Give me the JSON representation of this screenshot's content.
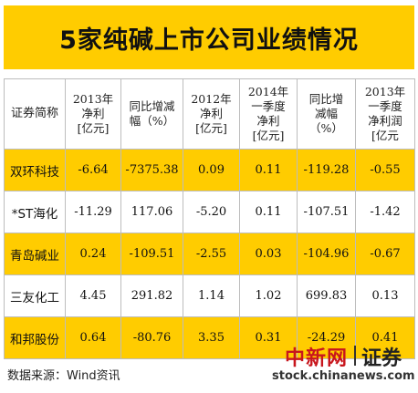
{
  "title": "5家纯碱上市公司业绩情况",
  "table": {
    "headers": [
      [
        "证券简称"
      ],
      [
        "2013年",
        "净利",
        "[亿元]"
      ],
      [
        "同比增减",
        "幅（%）"
      ],
      [
        "2012年",
        "净利",
        "[亿元]"
      ],
      [
        "2014年",
        "一季度",
        "净利",
        "[亿元]"
      ],
      [
        "同比增",
        "减幅",
        "（%）"
      ],
      [
        "2013年",
        "一季度",
        "净利润",
        "[亿元"
      ]
    ],
    "rows": [
      [
        "双环科技",
        "-6.64",
        "-7375.38",
        "0.09",
        "0.11",
        "-119.28",
        "-0.55"
      ],
      [
        "*ST海化",
        "-11.29",
        "117.06",
        "-5.20",
        "0.11",
        "-107.51",
        "-1.42"
      ],
      [
        "青岛碱业",
        "0.24",
        "-109.51",
        "-2.55",
        "0.03",
        "-104.96",
        "-0.67"
      ],
      [
        "三友化工",
        "4.45",
        "291.82",
        "1.14",
        "1.02",
        "699.83",
        "0.13"
      ],
      [
        "和邦股份",
        "0.64",
        "-80.76",
        "3.35",
        "0.31",
        "-24.29",
        "0.41"
      ]
    ]
  },
  "source": "数据来源：Wind资讯",
  "watermark": {
    "brand": "中新网",
    "section": "证券",
    "url": "stock.chinanews.com"
  },
  "colors": {
    "accent": "#ffcc00",
    "brand_red": "#c8161d"
  }
}
